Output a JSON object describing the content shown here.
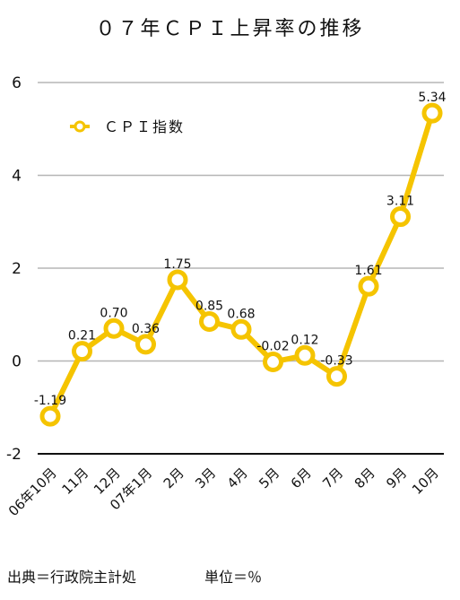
{
  "chart_data": {
    "type": "line",
    "title": "０７年ＣＰＩ上昇率の推移",
    "categories": [
      "06年10月",
      "11月",
      "12月",
      "07年1月",
      "2月",
      "3月",
      "4月",
      "5月",
      "6月",
      "7月",
      "8月",
      "9月",
      "10月"
    ],
    "series": [
      {
        "name": "ＣＰＩ指数",
        "values": [
          -1.19,
          0.21,
          0.7,
          0.36,
          1.75,
          0.85,
          0.68,
          -0.02,
          0.12,
          -0.33,
          1.61,
          3.11,
          5.34
        ],
        "labels": [
          "-1.19",
          "0.21",
          "0.70",
          "0.36",
          "1.75",
          "0.85",
          "0.68",
          "-0.02",
          "0.12",
          "-0.33",
          "1.61",
          "3.11",
          "5.34"
        ],
        "color": "#F5C400"
      }
    ],
    "ylim": [
      -2,
      6
    ],
    "yticks": [
      "-2",
      "0",
      "2",
      "4",
      "6"
    ],
    "grid": true,
    "legend_position": "top-left",
    "xlabel": "",
    "ylabel": ""
  },
  "footer": {
    "source": "出典＝行政院主計処",
    "unit": "単位＝％"
  },
  "colors": {
    "line": "#F5C400",
    "grid": "#b5b5b5",
    "baseline": "#111111"
  }
}
